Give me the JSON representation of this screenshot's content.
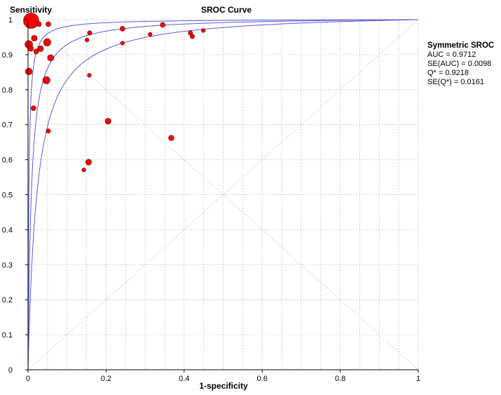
{
  "chart_data": {
    "type": "scatter",
    "title": "SROC Curve",
    "xlabel": "1-specificity",
    "ylabel": "Sensitivity",
    "xlim": [
      0,
      1
    ],
    "ylim": [
      0,
      1
    ],
    "x_ticks": [
      "0",
      "0.2",
      "0.4",
      "0.6",
      "0.8",
      "1"
    ],
    "y_ticks": [
      "0",
      "0.1",
      "0.2",
      "0.3",
      "0.4",
      "0.5",
      "0.6",
      "0.7",
      "0.8",
      "0.9",
      "1"
    ],
    "grid": true,
    "points": [
      {
        "x": 0.008,
        "y": 0.997,
        "size": 3.2
      },
      {
        "x": 0.028,
        "y": 0.987,
        "size": 1.0
      },
      {
        "x": 0.052,
        "y": 0.987,
        "size": 1.0
      },
      {
        "x": 0.002,
        "y": 0.929,
        "size": 1.6
      },
      {
        "x": 0.007,
        "y": 0.917,
        "size": 1.1
      },
      {
        "x": 0.016,
        "y": 0.947,
        "size": 1.2
      },
      {
        "x": 0.021,
        "y": 0.909,
        "size": 1.0
      },
      {
        "x": 0.032,
        "y": 0.917,
        "size": 1.2
      },
      {
        "x": 0.049,
        "y": 0.935,
        "size": 1.5
      },
      {
        "x": 0.058,
        "y": 0.891,
        "size": 1.3
      },
      {
        "x": 0.002,
        "y": 0.852,
        "size": 1.4
      },
      {
        "x": 0.047,
        "y": 0.827,
        "size": 1.5
      },
      {
        "x": 0.014,
        "y": 0.747,
        "size": 1.0
      },
      {
        "x": 0.052,
        "y": 0.682,
        "size": 0.9
      },
      {
        "x": 0.158,
        "y": 0.962,
        "size": 0.9
      },
      {
        "x": 0.151,
        "y": 0.942,
        "size": 0.8
      },
      {
        "x": 0.157,
        "y": 0.841,
        "size": 0.8
      },
      {
        "x": 0.242,
        "y": 0.974,
        "size": 1.0
      },
      {
        "x": 0.242,
        "y": 0.933,
        "size": 0.8
      },
      {
        "x": 0.313,
        "y": 0.958,
        "size": 0.8
      },
      {
        "x": 0.345,
        "y": 0.985,
        "size": 1.0
      },
      {
        "x": 0.205,
        "y": 0.71,
        "size": 1.2
      },
      {
        "x": 0.367,
        "y": 0.662,
        "size": 1.1
      },
      {
        "x": 0.155,
        "y": 0.593,
        "size": 1.2
      },
      {
        "x": 0.143,
        "y": 0.571,
        "size": 0.8
      },
      {
        "x": 0.416,
        "y": 0.962,
        "size": 0.9
      },
      {
        "x": 0.421,
        "y": 0.952,
        "size": 0.9
      },
      {
        "x": 0.449,
        "y": 0.969,
        "size": 0.8
      }
    ],
    "curves": [
      {
        "role": "sroc",
        "auc": 0.9712
      },
      {
        "role": "ci-upper"
      },
      {
        "role": "ci-lower"
      }
    ],
    "colors": {
      "points_fill": "#ff0000",
      "points_stroke": "#7a0000",
      "curve": "#5a5adc",
      "grid": "#c8c8c8",
      "diagonal": "#c8c8c8"
    }
  },
  "stats": {
    "heading": "Symmetric SROC",
    "auc": "AUC = 0.9712",
    "se_auc": "SE(AUC) = 0.0098",
    "q_star": "Q* = 0.9218",
    "se_q_star": "SE(Q*) = 0.0161"
  }
}
